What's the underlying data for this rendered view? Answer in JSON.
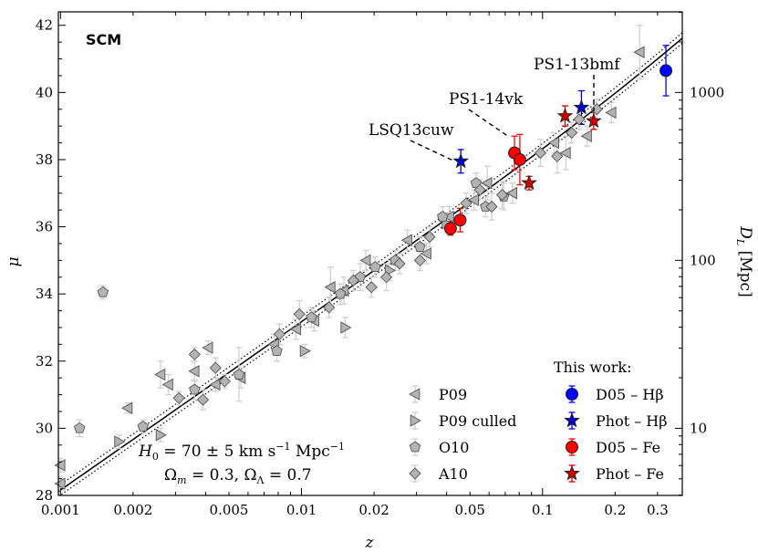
{
  "chart_data": {
    "type": "scatter",
    "panel_label": "SCM",
    "xlabel": "z",
    "ylabel": "μ",
    "y2label": "D_L [Mpc]",
    "xscale": "log",
    "xlim": [
      0.00098,
      0.38
    ],
    "ylim": [
      28,
      42.4
    ],
    "x_ticks": [
      {
        "v": 0.001,
        "label": "0.001"
      },
      {
        "v": 0.002,
        "label": "0.002"
      },
      {
        "v": 0.005,
        "label": "0.005"
      },
      {
        "v": 0.01,
        "label": "0.01"
      },
      {
        "v": 0.02,
        "label": "0.02"
      },
      {
        "v": 0.05,
        "label": "0.05"
      },
      {
        "v": 0.1,
        "label": "0.1"
      },
      {
        "v": 0.2,
        "label": "0.2"
      },
      {
        "v": 0.3,
        "label": "0.3"
      }
    ],
    "y_ticks": [
      {
        "v": 28,
        "label": "28"
      },
      {
        "v": 30,
        "label": "30"
      },
      {
        "v": 32,
        "label": "32"
      },
      {
        "v": 34,
        "label": "34"
      },
      {
        "v": 36,
        "label": "36"
      },
      {
        "v": 38,
        "label": "38"
      },
      {
        "v": 40,
        "label": "40"
      },
      {
        "v": 42,
        "label": "42"
      }
    ],
    "y2_ticks": [
      {
        "v": 10,
        "label": "10"
      },
      {
        "v": 100,
        "label": "100"
      },
      {
        "v": 1000,
        "label": "1000"
      }
    ],
    "grid": false,
    "cosmology": {
      "H0": 70,
      "H0_err": 5,
      "Omega_m": 0.3,
      "Omega_L": 0.7,
      "line1": "H0 = 70 ± 5 km s⁻¹ Mpc⁻¹",
      "line2": "Ωm = 0.3, ΩΛ = 0.7"
    },
    "legend_left": {
      "placement": "lower-right",
      "entries": [
        {
          "label": "P09",
          "marker": "tri-left"
        },
        {
          "label": "P09 culled",
          "marker": "tri-right"
        },
        {
          "label": "O10",
          "marker": "pentagon"
        },
        {
          "label": "A10",
          "marker": "diamond"
        }
      ]
    },
    "legend_right": {
      "title": "This work:",
      "entries": [
        {
          "label": "D05 – Hβ",
          "marker": "circle",
          "color": "#0000ff"
        },
        {
          "label": "Phot – Hβ",
          "marker": "star",
          "color": "#0000cc"
        },
        {
          "label": "D05 – Fe",
          "marker": "circle",
          "color": "#ff0000"
        },
        {
          "label": "Phot – Fe",
          "marker": "star",
          "color": "#cc0000"
        }
      ]
    },
    "annotations": [
      {
        "text": "LSQ13cuw",
        "z": 0.0456,
        "mu": 37.95
      },
      {
        "text": "PS1-14vk",
        "z": 0.077,
        "mu": 38.2
      },
      {
        "text": "PS1-13bmf",
        "z": 0.162,
        "mu": 39.2
      }
    ],
    "series": [
      {
        "name": "P09",
        "marker": "tri-left",
        "color": "#aaaaaa",
        "points": [
          {
            "z": 0.001,
            "mu": 28.9,
            "err": 0.2
          },
          {
            "z": 0.001,
            "mu": 28.35,
            "err": 0.2
          },
          {
            "z": 0.0019,
            "mu": 30.6,
            "err": 0.15
          },
          {
            "z": 0.0026,
            "mu": 31.6,
            "err": 0.4
          },
          {
            "z": 0.0028,
            "mu": 31.3,
            "err": 0.3
          },
          {
            "z": 0.0036,
            "mu": 31.7,
            "err": 0.3
          },
          {
            "z": 0.0041,
            "mu": 32.4,
            "err": 0.2
          },
          {
            "z": 0.0044,
            "mu": 31.3,
            "err": 0.2
          },
          {
            "z": 0.0056,
            "mu": 31.5,
            "err": 0.3
          },
          {
            "z": 0.0077,
            "mu": 32.5,
            "err": 0.3
          },
          {
            "z": 0.0095,
            "mu": 32.95,
            "err": 0.3
          },
          {
            "z": 0.0113,
            "mu": 33.2,
            "err": 0.3
          },
          {
            "z": 0.0132,
            "mu": 34.2,
            "err": 0.6
          },
          {
            "z": 0.015,
            "mu": 34.1,
            "err": 0.4
          },
          {
            "z": 0.0185,
            "mu": 35.0,
            "err": 0.3
          },
          {
            "z": 0.0275,
            "mu": 35.6,
            "err": 0.3
          },
          {
            "z": 0.033,
            "mu": 35.2,
            "err": 0.3
          },
          {
            "z": 0.041,
            "mu": 36.3,
            "err": 0.3
          },
          {
            "z": 0.052,
            "mu": 36.8,
            "err": 0.3
          },
          {
            "z": 0.059,
            "mu": 37.3,
            "err": 0.5
          },
          {
            "z": 0.075,
            "mu": 37.0,
            "err": 0.3
          },
          {
            "z": 0.112,
            "mu": 38.5,
            "err": 0.3
          },
          {
            "z": 0.125,
            "mu": 38.2,
            "err": 0.5
          },
          {
            "z": 0.153,
            "mu": 38.7,
            "err": 0.3
          },
          {
            "z": 0.193,
            "mu": 39.4,
            "err": 0.3
          },
          {
            "z": 0.253,
            "mu": 41.2,
            "err": 0.8
          }
        ]
      },
      {
        "name": "P09 culled",
        "marker": "tri-right",
        "color": "#aaaaaa",
        "points": [
          {
            "z": 0.00175,
            "mu": 29.6,
            "err": 0.2
          },
          {
            "z": 0.0026,
            "mu": 29.8,
            "err": 0.2
          },
          {
            "z": 0.0103,
            "mu": 32.3,
            "err": 0.2
          },
          {
            "z": 0.0152,
            "mu": 33.0,
            "err": 0.3
          },
          {
            "z": 0.0232,
            "mu": 34.7,
            "err": 0.3
          },
          {
            "z": 0.04,
            "mu": 36.1,
            "err": 0.3
          }
        ]
      },
      {
        "name": "O10",
        "marker": "pentagon",
        "color": "#aaaaaa",
        "points": [
          {
            "z": 0.0012,
            "mu": 30.0,
            "err": 0.25
          },
          {
            "z": 0.0015,
            "mu": 34.05,
            "err": 0.2
          },
          {
            "z": 0.0022,
            "mu": 30.05,
            "err": 0.2
          },
          {
            "z": 0.0036,
            "mu": 31.15,
            "err": 0.3
          },
          {
            "z": 0.0055,
            "mu": 31.6,
            "err": 0.8
          },
          {
            "z": 0.0079,
            "mu": 32.3,
            "err": 0.3
          },
          {
            "z": 0.011,
            "mu": 33.3,
            "err": 0.3
          },
          {
            "z": 0.0145,
            "mu": 34.0,
            "err": 0.3
          },
          {
            "z": 0.0175,
            "mu": 34.5,
            "err": 0.4
          },
          {
            "z": 0.0202,
            "mu": 34.8,
            "err": 0.3
          },
          {
            "z": 0.0245,
            "mu": 35.0,
            "err": 0.3
          },
          {
            "z": 0.031,
            "mu": 35.4,
            "err": 0.3
          },
          {
            "z": 0.0385,
            "mu": 36.3,
            "err": 0.3
          },
          {
            "z": 0.053,
            "mu": 37.3,
            "err": 0.3
          },
          {
            "z": 0.058,
            "mu": 36.6,
            "err": 0.3
          },
          {
            "z": 0.069,
            "mu": 36.9,
            "err": 0.4
          }
        ]
      },
      {
        "name": "A10",
        "marker": "diamond",
        "color": "#aaaaaa",
        "points": [
          {
            "z": 0.0031,
            "mu": 30.9,
            "err": 0.2
          },
          {
            "z": 0.0036,
            "mu": 32.2,
            "err": 0.2
          },
          {
            "z": 0.0039,
            "mu": 30.85,
            "err": 0.3
          },
          {
            "z": 0.0044,
            "mu": 31.8,
            "err": 0.3
          },
          {
            "z": 0.0048,
            "mu": 31.4,
            "err": 0.2
          },
          {
            "z": 0.0081,
            "mu": 32.8,
            "err": 0.3
          },
          {
            "z": 0.0098,
            "mu": 33.4,
            "err": 0.4
          },
          {
            "z": 0.013,
            "mu": 33.6,
            "err": 0.3
          },
          {
            "z": 0.0164,
            "mu": 34.4,
            "err": 0.3
          },
          {
            "z": 0.0195,
            "mu": 34.2,
            "err": 0.3
          },
          {
            "z": 0.0225,
            "mu": 34.5,
            "err": 0.4
          },
          {
            "z": 0.0255,
            "mu": 34.9,
            "err": 0.3
          },
          {
            "z": 0.031,
            "mu": 35.0,
            "err": 0.3
          },
          {
            "z": 0.034,
            "mu": 35.7,
            "err": 0.3
          },
          {
            "z": 0.0482,
            "mu": 36.7,
            "err": 0.3
          },
          {
            "z": 0.055,
            "mu": 37.1,
            "err": 0.3
          },
          {
            "z": 0.0615,
            "mu": 36.6,
            "err": 0.4
          },
          {
            "z": 0.068,
            "mu": 36.95,
            "err": 0.4
          },
          {
            "z": 0.098,
            "mu": 38.2,
            "err": 0.4
          },
          {
            "z": 0.115,
            "mu": 38.1,
            "err": 0.5
          },
          {
            "z": 0.132,
            "mu": 38.8,
            "err": 0.3
          },
          {
            "z": 0.142,
            "mu": 39.2,
            "err": 0.3
          },
          {
            "z": 0.168,
            "mu": 39.5,
            "err": 0.3
          }
        ]
      },
      {
        "name": "D05 – Hβ",
        "marker": "circle",
        "color": "#0000ff",
        "points": [
          {
            "z": 0.325,
            "mu": 40.65,
            "err": 0.75
          }
        ]
      },
      {
        "name": "Phot – Hβ",
        "marker": "star",
        "color": "#0000cc",
        "points": [
          {
            "z": 0.0458,
            "mu": 37.95,
            "err": 0.35
          },
          {
            "z": 0.145,
            "mu": 39.55,
            "err": 0.5
          }
        ]
      },
      {
        "name": "D05 – Fe",
        "marker": "circle",
        "color": "#ff0000",
        "points": [
          {
            "z": 0.0415,
            "mu": 35.95,
            "err": 0.2
          },
          {
            "z": 0.0455,
            "mu": 36.2,
            "err": 0.35
          },
          {
            "z": 0.0765,
            "mu": 38.2,
            "err": 0.5
          },
          {
            "z": 0.0805,
            "mu": 38.0,
            "err": 0.75
          }
        ]
      },
      {
        "name": "Phot – Fe",
        "marker": "star",
        "color": "#cc0000",
        "points": [
          {
            "z": 0.088,
            "mu": 37.3,
            "err": 0.2
          },
          {
            "z": 0.124,
            "mu": 39.3,
            "err": 0.3
          },
          {
            "z": 0.163,
            "mu": 39.15,
            "err": 0.25
          }
        ]
      }
    ]
  }
}
